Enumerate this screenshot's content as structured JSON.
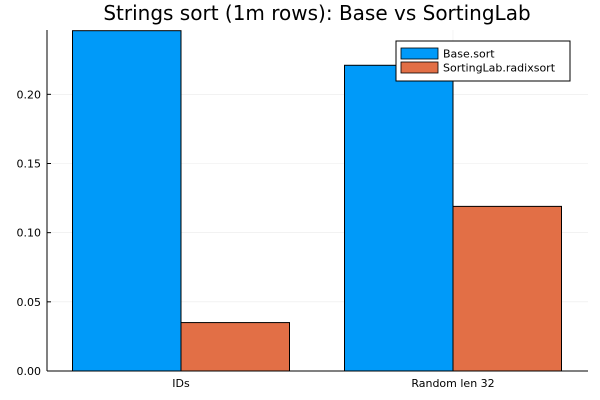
{
  "chart_data": {
    "type": "bar",
    "title": "Strings sort (1m rows): Base vs SortingLab",
    "xlabel": "",
    "ylabel": "",
    "categories": [
      "IDs",
      "Random len 32"
    ],
    "series": [
      {
        "name": "Base.sort",
        "color": "#009af9",
        "values": [
          0.246,
          0.221
        ]
      },
      {
        "name": "SortingLab.radixsort",
        "color": "#e26f46",
        "values": [
          0.035,
          0.119
        ]
      }
    ],
    "ylim": [
      0,
      0.2465
    ],
    "yticks": [
      0.0,
      0.05,
      0.1,
      0.15,
      0.2
    ],
    "ytick_labels": [
      "0.00",
      "0.05",
      "0.10",
      "0.15",
      "0.20"
    ],
    "grid": true,
    "legend_position": "top-right"
  }
}
